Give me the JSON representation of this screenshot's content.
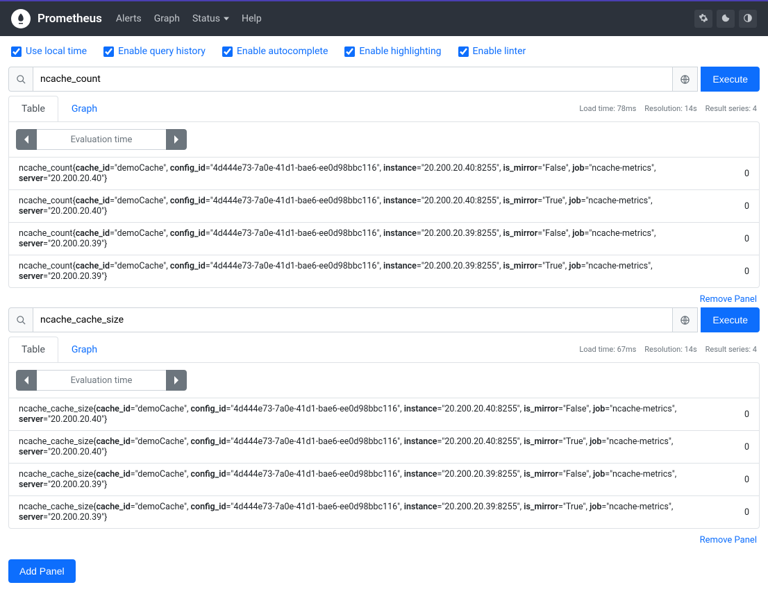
{
  "brand": "Prometheus",
  "nav": {
    "alerts": "Alerts",
    "graph": "Graph",
    "status": "Status",
    "help": "Help"
  },
  "options": {
    "local_time": "Use local time",
    "query_history": "Enable query history",
    "autocomplete": "Enable autocomplete",
    "highlighting": "Enable highlighting",
    "linter": "Enable linter"
  },
  "buttons": {
    "execute": "Execute",
    "add_panel": "Add Panel",
    "remove_panel": "Remove Panel"
  },
  "tabs": {
    "table": "Table",
    "graph": "Graph"
  },
  "eval_label": "Evaluation time",
  "panels": [
    {
      "query": "ncache_count",
      "load_time": "Load time: 78ms",
      "resolution": "Resolution: 14s",
      "series": "Result series: 4",
      "rows": [
        {
          "metric": "ncache_count",
          "cache_id": "demoCache",
          "config_id": "4d444e73-7a0e-41d1-bae6-ee0d98bbc116",
          "instance": "20.200.20.40:8255",
          "is_mirror": "False",
          "job": "ncache-metrics",
          "server": "20.200.20.40",
          "value": "0"
        },
        {
          "metric": "ncache_count",
          "cache_id": "demoCache",
          "config_id": "4d444e73-7a0e-41d1-bae6-ee0d98bbc116",
          "instance": "20.200.20.40:8255",
          "is_mirror": "True",
          "job": "ncache-metrics",
          "server": "20.200.20.40",
          "value": "0"
        },
        {
          "metric": "ncache_count",
          "cache_id": "demoCache",
          "config_id": "4d444e73-7a0e-41d1-bae6-ee0d98bbc116",
          "instance": "20.200.20.39:8255",
          "is_mirror": "False",
          "job": "ncache-metrics",
          "server": "20.200.20.39",
          "value": "0"
        },
        {
          "metric": "ncache_count",
          "cache_id": "demoCache",
          "config_id": "4d444e73-7a0e-41d1-bae6-ee0d98bbc116",
          "instance": "20.200.20.39:8255",
          "is_mirror": "True",
          "job": "ncache-metrics",
          "server": "20.200.20.39",
          "value": "0"
        }
      ]
    },
    {
      "query": "ncache_cache_size",
      "load_time": "Load time: 67ms",
      "resolution": "Resolution: 14s",
      "series": "Result series: 4",
      "rows": [
        {
          "metric": "ncache_cache_size",
          "cache_id": "demoCache",
          "config_id": "4d444e73-7a0e-41d1-bae6-ee0d98bbc116",
          "instance": "20.200.20.40:8255",
          "is_mirror": "False",
          "job": "ncache-metrics",
          "server": "20.200.20.40",
          "value": "0"
        },
        {
          "metric": "ncache_cache_size",
          "cache_id": "demoCache",
          "config_id": "4d444e73-7a0e-41d1-bae6-ee0d98bbc116",
          "instance": "20.200.20.40:8255",
          "is_mirror": "True",
          "job": "ncache-metrics",
          "server": "20.200.20.40",
          "value": "0"
        },
        {
          "metric": "ncache_cache_size",
          "cache_id": "demoCache",
          "config_id": "4d444e73-7a0e-41d1-bae6-ee0d98bbc116",
          "instance": "20.200.20.39:8255",
          "is_mirror": "False",
          "job": "ncache-metrics",
          "server": "20.200.20.39",
          "value": "0"
        },
        {
          "metric": "ncache_cache_size",
          "cache_id": "demoCache",
          "config_id": "4d444e73-7a0e-41d1-bae6-ee0d98bbc116",
          "instance": "20.200.20.39:8255",
          "is_mirror": "True",
          "job": "ncache-metrics",
          "server": "20.200.20.39",
          "value": "0"
        }
      ]
    }
  ]
}
